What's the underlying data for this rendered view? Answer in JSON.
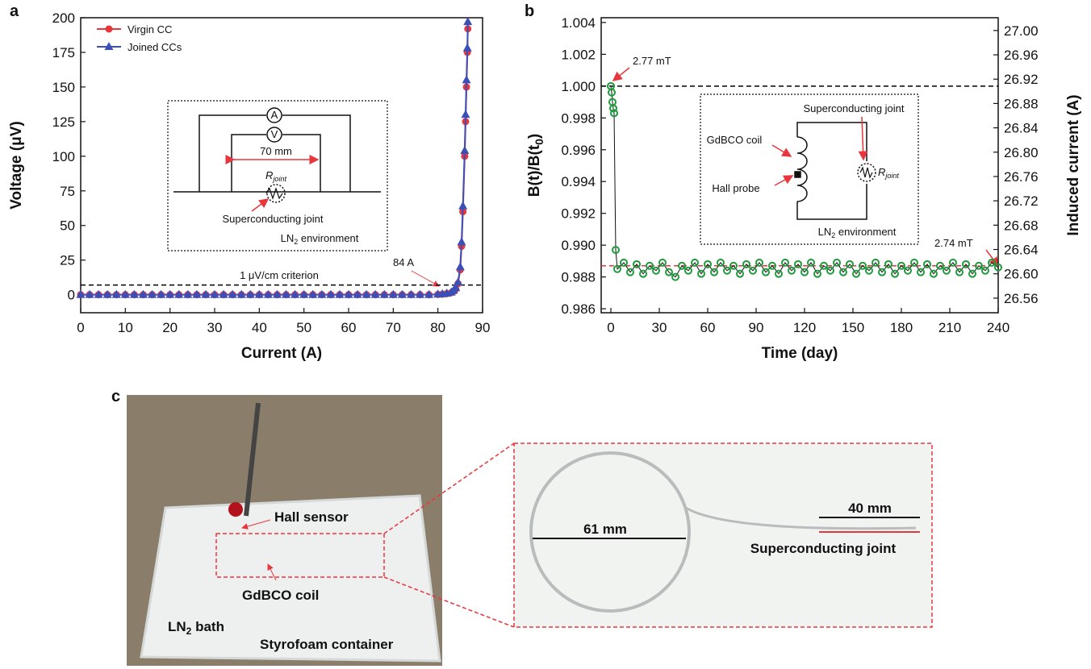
{
  "chart_data": [
    {
      "type": "line",
      "panel": "a",
      "xlabel": "Current (A)",
      "ylabel": "Voltage (μV)",
      "xlim": [
        0,
        90
      ],
      "ylim": [
        -13,
        200
      ],
      "xticks": [
        0,
        10,
        20,
        30,
        40,
        50,
        60,
        70,
        80,
        90
      ],
      "yticks": [
        0,
        25,
        50,
        75,
        100,
        125,
        150,
        175,
        200
      ],
      "legend": "upper-left",
      "x": [
        0,
        2,
        4,
        6,
        8,
        10,
        12,
        14,
        16,
        18,
        20,
        22,
        24,
        26,
        28,
        30,
        32,
        34,
        36,
        38,
        40,
        42,
        44,
        46,
        48,
        50,
        52,
        54,
        56,
        58,
        60,
        62,
        64,
        66,
        68,
        70,
        72,
        74,
        76,
        78,
        80,
        81,
        82,
        83,
        83.5,
        84,
        84.5,
        85,
        85.3,
        85.6,
        86,
        86.2,
        86.4,
        86.6,
        86.7
      ],
      "series": [
        {
          "name": "Virgin CC",
          "color": "#e8363c",
          "marker": "circle",
          "values": [
            0,
            0,
            0,
            0,
            0,
            0,
            0,
            0,
            0,
            0,
            0,
            0,
            0,
            0,
            0,
            0,
            0,
            0,
            0,
            0,
            0,
            0,
            0,
            0,
            0,
            0,
            0,
            0,
            0,
            0,
            0,
            0,
            0,
            0,
            0,
            0,
            0,
            0,
            0,
            0,
            0.2,
            0.4,
            0.8,
            1.5,
            2.5,
            4,
            8,
            18,
            35,
            60,
            100,
            125,
            150,
            175,
            192
          ]
        },
        {
          "name": "Joined CCs",
          "color": "#3b4fb8",
          "marker": "triangle",
          "values": [
            0,
            0,
            0,
            0,
            0,
            0,
            0,
            0,
            0,
            0,
            0,
            0,
            0,
            0,
            0,
            0,
            0,
            0,
            0,
            0,
            0,
            0,
            0,
            0,
            0,
            0,
            0,
            0,
            0,
            0,
            0,
            0,
            0,
            0,
            0,
            0,
            0,
            0,
            0,
            0,
            0.3,
            0.5,
            1,
            1.8,
            3,
            5,
            9,
            20,
            38,
            64,
            104,
            130,
            155,
            178,
            197
          ]
        }
      ],
      "hlines": [
        {
          "value": 7,
          "color": "#000"
        }
      ],
      "annotations": [
        "1 μV/cm criterion",
        "84 A"
      ],
      "inset": {
        "ammeter": "A",
        "voltmeter": "V",
        "length": "70 mm",
        "resistor": "R",
        "resistor_sub": "joint",
        "joint": "Superconducting joint",
        "env": "LN",
        "env_sub": "2",
        "env_rest": " environment"
      }
    },
    {
      "type": "scatter",
      "panel": "b",
      "xlabel": "Time (day)",
      "ylabel": "B(t)/B(t",
      "ylabel_sub": "0",
      "ylabel_end": ")",
      "y2label": "Induced current (A)",
      "xlim": [
        -6,
        240
      ],
      "ylim": [
        0.98575,
        1.0043
      ],
      "y2lim": [
        26.536,
        27.021
      ],
      "xticks": [
        0,
        30,
        60,
        90,
        120,
        150,
        180,
        210,
        240
      ],
      "yticks": [
        0.986,
        0.988,
        {
          "value": 0.99,
          "label": "0.990"
        },
        0.992,
        0.994,
        0.996,
        0.998,
        {
          "value": 1,
          "label": "1.000"
        },
        1.002,
        1.004
      ],
      "y2ticks": [
        26.56,
        {
          "value": 26.6,
          "label": "26.60"
        },
        26.64,
        26.68,
        26.72,
        26.76,
        {
          "value": 26.8,
          "label": "26.80"
        },
        26.84,
        26.88,
        26.92,
        26.96,
        {
          "value": 27,
          "label": "27.00"
        }
      ],
      "x": [
        0,
        0.5,
        1,
        1.5,
        2,
        3,
        4,
        8,
        12,
        16,
        20,
        24,
        28,
        32,
        36,
        40,
        44,
        48,
        52,
        56,
        60,
        64,
        68,
        72,
        76,
        80,
        84,
        88,
        92,
        96,
        100,
        104,
        108,
        112,
        116,
        120,
        124,
        128,
        132,
        136,
        140,
        144,
        148,
        152,
        156,
        160,
        164,
        168,
        172,
        176,
        180,
        184,
        188,
        192,
        196,
        200,
        204,
        208,
        212,
        216,
        220,
        224,
        228,
        232,
        236,
        240
      ],
      "series": [
        {
          "color": "#1e9b3c",
          "marker": "circle",
          "values": [
            1,
            0.9996,
            0.999,
            0.9986,
            0.9983,
            0.9897,
            0.9885,
            0.9889,
            0.9883,
            0.9888,
            0.9882,
            0.9887,
            0.9884,
            0.9889,
            0.9883,
            0.988,
            0.9887,
            0.9884,
            0.9889,
            0.9882,
            0.9888,
            0.9883,
            0.9889,
            0.9884,
            0.9887,
            0.9882,
            0.9888,
            0.9884,
            0.9889,
            0.9883,
            0.9887,
            0.9882,
            0.9889,
            0.9884,
            0.9888,
            0.9883,
            0.9889,
            0.9882,
            0.9887,
            0.9884,
            0.9889,
            0.9883,
            0.9888,
            0.9882,
            0.9887,
            0.9884,
            0.9889,
            0.9883,
            0.9888,
            0.9882,
            0.9887,
            0.9884,
            0.9889,
            0.9883,
            0.9888,
            0.9882,
            0.9887,
            0.9884,
            0.9889,
            0.9883,
            0.9888,
            0.9882,
            0.9887,
            0.9884,
            0.9889,
            0.9886
          ]
        }
      ],
      "hlines": [
        {
          "value": 1,
          "color": "#000"
        },
        {
          "value": 0.9887,
          "color": "#e8363c"
        }
      ],
      "annotations": [
        "2.77 mT",
        "2.74 mT"
      ],
      "inset": {
        "joint": "Superconducting joint",
        "coil": "GdBCO coil",
        "probe": "Hall probe",
        "resistor": "R",
        "resistor_sub": "joint",
        "env": "LN",
        "env_sub": "2",
        "env_rest": " environment"
      }
    }
  ],
  "panel_c": {
    "label": "c",
    "hall": "Hall sensor",
    "coil": "GdBCO coil",
    "bath": "LN",
    "bath_sub": "2",
    "bath_rest": " bath",
    "container": "Styrofoam container",
    "d1": "61 mm",
    "d2": "40 mm",
    "joint": "Superconducting  joint"
  }
}
